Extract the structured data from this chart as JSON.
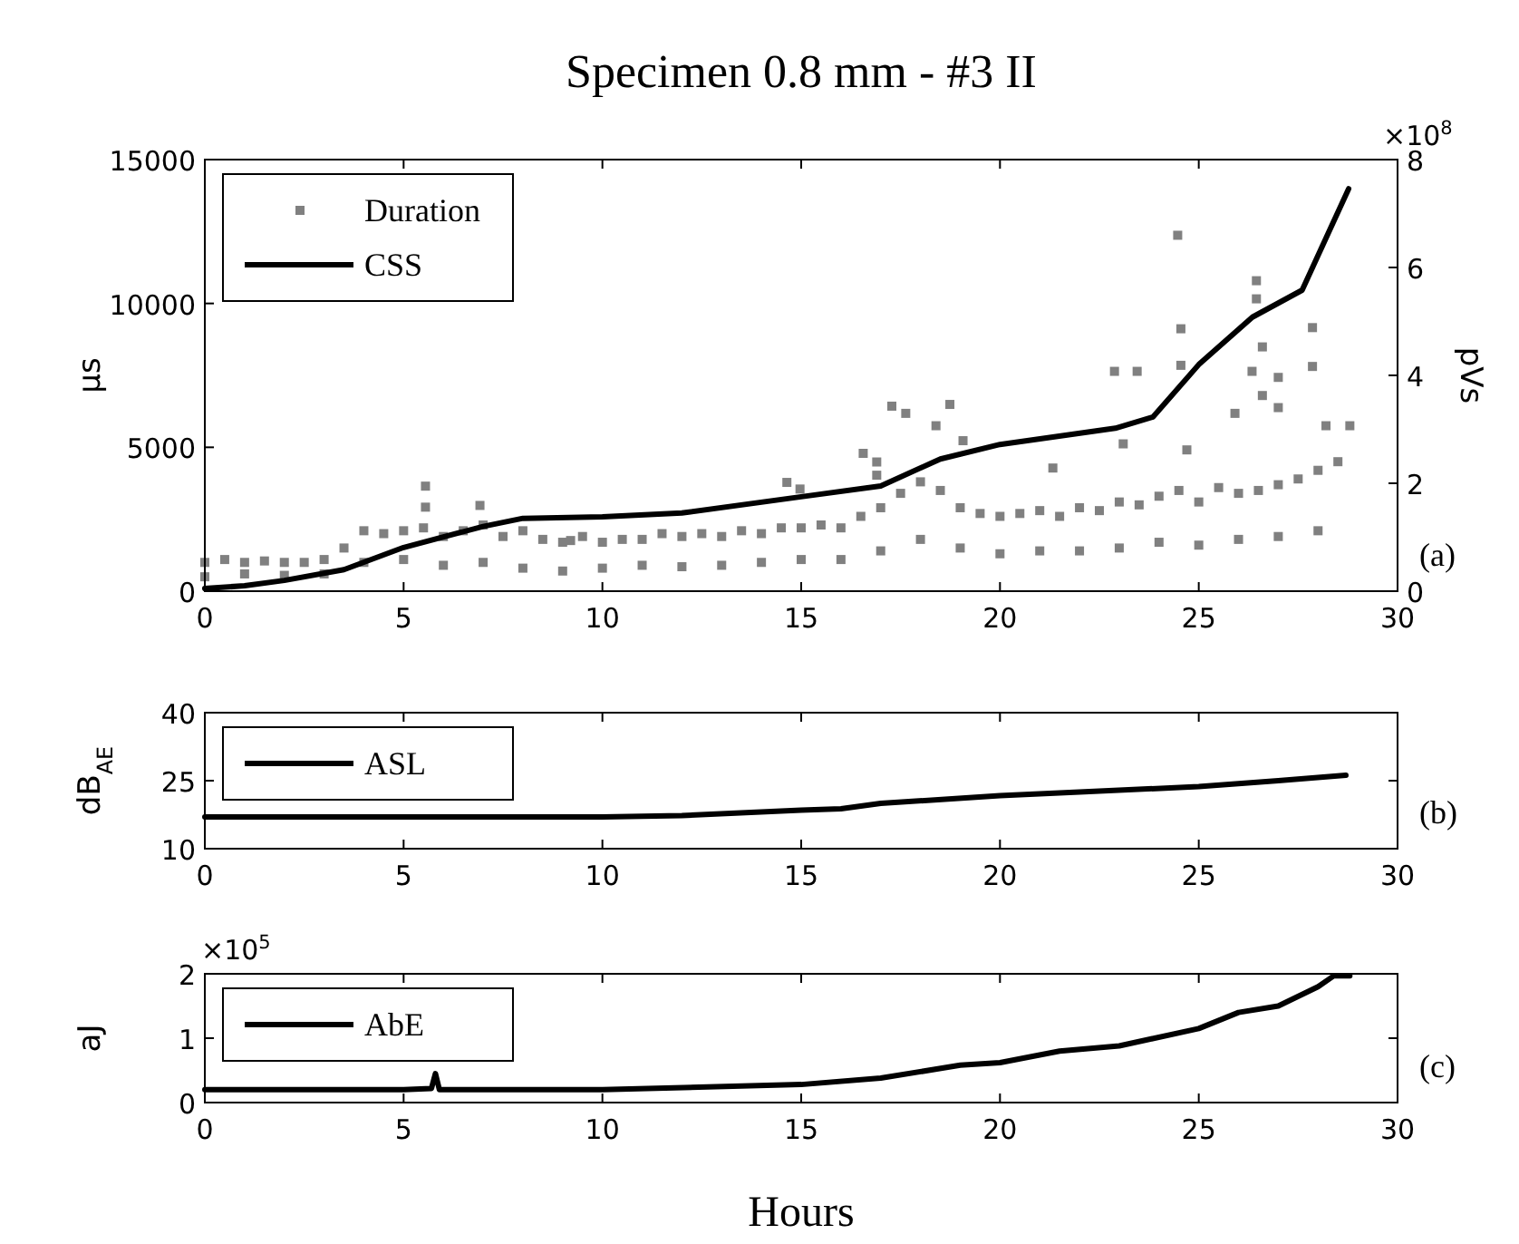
{
  "chart_data": [
    {
      "type": "scatter",
      "title": "Specimen 0.8 mm - #3 II",
      "ylabel": "µs",
      "y2label": "pVs",
      "annotations": [
        "×10$^{8}$",
        "(a)"
      ],
      "xlim": [
        0,
        30
      ],
      "xticks": [
        0,
        5,
        10,
        15,
        20,
        25,
        30
      ],
      "ylim": [
        0,
        15000
      ],
      "yticks": [
        0,
        5000,
        10000,
        15000
      ],
      "y2lim": [
        0,
        8
      ],
      "y2ticks": [
        0,
        2,
        4,
        6,
        8
      ],
      "legend": "top left",
      "grid": false,
      "series": [
        {
          "name": "Duration",
          "marker": "square",
          "color": "#808080",
          "x": [
            0,
            0.5,
            1,
            1.5,
            2,
            2.5,
            3,
            3.5,
            4,
            4.5,
            5,
            5.5,
            6,
            6.5,
            7,
            7.5,
            8,
            8.5,
            9,
            9.5,
            10,
            10.5,
            11,
            11.5,
            12,
            12.5,
            13,
            13.5,
            14,
            14.5,
            15,
            15.5,
            16,
            16.5,
            17,
            17.5,
            18,
            18.5,
            19,
            19.5,
            20,
            20.5,
            21,
            21.5,
            22,
            22.5,
            23,
            23.5,
            24,
            24.5,
            25,
            25.5,
            26,
            26.5,
            27,
            27.5,
            28,
            28.5,
            0,
            1,
            2,
            3,
            4,
            5,
            6,
            7,
            8,
            9,
            10,
            11,
            12,
            13,
            14,
            15,
            16,
            17,
            18,
            19,
            20,
            21,
            22,
            23,
            24,
            25,
            26,
            27,
            28,
            24.47,
            26.45,
            26.45,
            24.55,
            27.86,
            22.88,
            23.45,
            24.55,
            26.6,
            26.34,
            27,
            27.86,
            26.6,
            27,
            17.63,
            18.74,
            18.39,
            19.07,
            16.9,
            16.9,
            14.97,
            28.2,
            28.8,
            25.91,
            21.33,
            23.1,
            24.7,
            5.55,
            5.55,
            6.92,
            9.2,
            16.56,
            17.28,
            14.64
          ],
          "values": [
            1000,
            1100,
            1000,
            1050,
            1000,
            1000,
            1100,
            1500,
            2100,
            2000,
            2100,
            2200,
            1900,
            2100,
            2300,
            1900,
            2100,
            1800,
            1700,
            1900,
            1700,
            1800,
            1800,
            2000,
            1900,
            2000,
            1900,
            2100,
            2000,
            2200,
            2200,
            2300,
            2200,
            2600,
            2900,
            3400,
            3800,
            3500,
            2900,
            2700,
            2600,
            2700,
            2800,
            2600,
            2900,
            2800,
            3100,
            3000,
            3300,
            3500,
            3100,
            3600,
            3400,
            3500,
            3700,
            3900,
            4200,
            4500,
            500,
            600,
            550,
            600,
            1000,
            1100,
            900,
            1000,
            800,
            700,
            800,
            900,
            850,
            900,
            1000,
            1100,
            1100,
            1400,
            1800,
            1500,
            1300,
            1400,
            1400,
            1500,
            1700,
            1600,
            1800,
            1900,
            2100,
            12370,
            10790,
            10160,
            9120,
            9160,
            7640,
            7640,
            7850,
            8490,
            7640,
            7430,
            7810,
            6800,
            6380,
            6180,
            6490,
            5750,
            5230,
            4490,
            4030,
            3550,
            5750,
            5750,
            6180,
            4280,
            5120,
            4910,
            3650,
            2920,
            2980,
            1760,
            4790,
            6430,
            3780
          ]
        },
        {
          "name": "CSS",
          "type": "line",
          "axis": "y2",
          "color": "#000000",
          "line_style": "solid",
          "x": [
            0,
            1,
            2,
            3.5,
            5,
            7,
            8,
            10,
            12,
            15,
            17,
            18.5,
            20,
            22.9,
            23.85,
            25,
            26.35,
            27.6,
            28.77
          ],
          "values": [
            0.05,
            0.1,
            0.2,
            0.4,
            0.81,
            1.2,
            1.35,
            1.38,
            1.45,
            1.75,
            1.95,
            2.45,
            2.72,
            3.02,
            3.23,
            4.2,
            5.08,
            5.58,
            7.46
          ]
        }
      ]
    },
    {
      "type": "line",
      "ylabel": "dB$_{AE}$",
      "annotations": [
        "(b)"
      ],
      "xlim": [
        0,
        30
      ],
      "xticks": [
        0,
        5,
        10,
        15,
        20,
        25,
        30
      ],
      "ylim": [
        10,
        40
      ],
      "yticks": [
        10,
        25,
        40
      ],
      "legend": "top left",
      "grid": false,
      "series": [
        {
          "name": "ASL",
          "color": "#000000",
          "line_style": "solid",
          "x": [
            0,
            5,
            10,
            12,
            15,
            16,
            17,
            20,
            22,
            25,
            27,
            28.7
          ],
          "values": [
            17,
            17,
            17,
            17.3,
            18.5,
            18.8,
            20,
            21.7,
            22.5,
            23.7,
            25,
            26.2
          ]
        }
      ]
    },
    {
      "type": "line",
      "ylabel": "aJ",
      "xlabel": "Hours",
      "annotations": [
        "×10$^{5}$",
        "(c)"
      ],
      "xlim": [
        0,
        30
      ],
      "xticks": [
        0,
        5,
        10,
        15,
        20,
        25,
        30
      ],
      "ylim": [
        0,
        2
      ],
      "yticks": [
        0,
        1,
        2
      ],
      "legend": "top left",
      "grid": false,
      "series": [
        {
          "name": "AbE",
          "color": "#000000",
          "line_style": "solid",
          "x": [
            0,
            5,
            5.7,
            5.8,
            5.9,
            10,
            15,
            17,
            19,
            20,
            21.5,
            23,
            25,
            26,
            27,
            28,
            28.4,
            28.8
          ],
          "values": [
            0.2,
            0.2,
            0.22,
            0.45,
            0.2,
            0.2,
            0.28,
            0.38,
            0.58,
            0.62,
            0.8,
            0.88,
            1.15,
            1.4,
            1.5,
            1.8,
            1.97,
            1.97
          ]
        }
      ]
    }
  ]
}
